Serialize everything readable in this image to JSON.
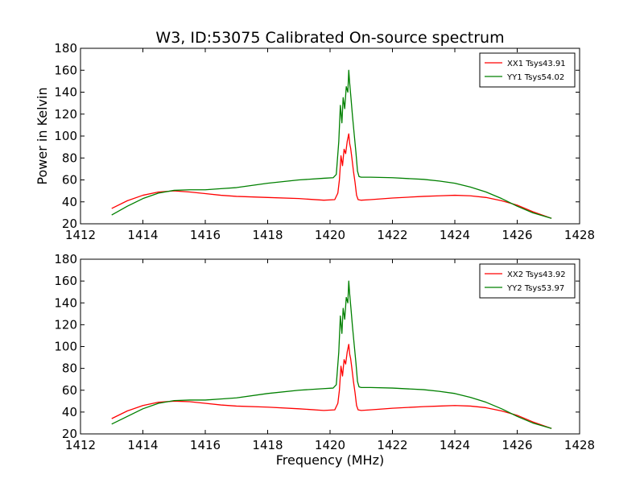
{
  "figure": {
    "title": "W3, ID:53075 Calibrated On-source spectrum",
    "xlabel": "Frequency (MHz)",
    "ylabel": "Power in Kelvin"
  },
  "colors": {
    "series_xx": "#ff0000",
    "series_yy": "#008000",
    "axes": "#000000",
    "background": "#ffffff"
  },
  "chart_data": [
    {
      "type": "line",
      "title": "W3, ID:53075 Calibrated On-source spectrum",
      "xlabel": "",
      "ylabel": "Power in Kelvin",
      "xlim": [
        1412,
        1428
      ],
      "ylim": [
        20,
        180
      ],
      "xticks": [
        1412,
        1414,
        1416,
        1418,
        1420,
        1422,
        1424,
        1426,
        1428
      ],
      "yticks": [
        20,
        40,
        60,
        80,
        100,
        120,
        140,
        160,
        180
      ],
      "legend": "top-right",
      "grid": false,
      "series": [
        {
          "name": "XX1 Tsys43.91",
          "color": "#ff0000",
          "x": [
            1413.0,
            1413.5,
            1414.0,
            1414.5,
            1415.0,
            1415.5,
            1416.0,
            1416.5,
            1417.0,
            1418.0,
            1419.0,
            1419.8,
            1420.15,
            1420.25,
            1420.3,
            1420.35,
            1420.4,
            1420.45,
            1420.5,
            1420.55,
            1420.6,
            1420.63,
            1420.66,
            1420.7,
            1420.75,
            1420.8,
            1420.85,
            1420.9,
            1421.0,
            1421.3,
            1422.0,
            1423.0,
            1423.5,
            1424.0,
            1424.5,
            1425.0,
            1425.5,
            1426.0,
            1426.5,
            1427.1
          ],
          "y": [
            34,
            41,
            46,
            49,
            50,
            49,
            47.5,
            46,
            45,
            44,
            43,
            41.5,
            42,
            48,
            60,
            82,
            73,
            88,
            84,
            95,
            102,
            93,
            89,
            80,
            68,
            58,
            46,
            42,
            41.5,
            42,
            43.5,
            45,
            45.5,
            46,
            45.5,
            44,
            41,
            37,
            31,
            25
          ]
        },
        {
          "name": "YY1 Tsys54.02",
          "color": "#008000",
          "x": [
            1413.0,
            1413.5,
            1414.0,
            1414.5,
            1415.0,
            1415.5,
            1416.0,
            1416.5,
            1417.0,
            1418.0,
            1419.0,
            1419.8,
            1420.1,
            1420.2,
            1420.28,
            1420.33,
            1420.38,
            1420.42,
            1420.47,
            1420.52,
            1420.57,
            1420.6,
            1420.63,
            1420.67,
            1420.72,
            1420.78,
            1420.83,
            1420.88,
            1420.93,
            1421.0,
            1421.3,
            1422.0,
            1423.0,
            1423.5,
            1424.0,
            1424.5,
            1425.0,
            1425.5,
            1426.0,
            1426.5,
            1427.1
          ],
          "y": [
            28,
            36,
            43,
            48,
            50.5,
            51,
            51,
            52,
            53,
            57,
            60,
            61.5,
            62,
            65,
            95,
            128,
            112,
            135,
            125,
            145,
            140,
            160,
            148,
            135,
            118,
            100,
            85,
            68,
            63,
            62.5,
            62.5,
            62,
            60.5,
            59,
            57,
            53.5,
            49,
            43,
            36,
            30,
            25
          ]
        }
      ]
    },
    {
      "type": "line",
      "title": "",
      "xlabel": "Frequency (MHz)",
      "ylabel": "",
      "xlim": [
        1412,
        1428
      ],
      "ylim": [
        20,
        180
      ],
      "xticks": [
        1412,
        1414,
        1416,
        1418,
        1420,
        1422,
        1424,
        1426,
        1428
      ],
      "yticks": [
        20,
        40,
        60,
        80,
        100,
        120,
        140,
        160,
        180
      ],
      "legend": "top-right",
      "grid": false,
      "series": [
        {
          "name": "XX2 Tsys43.92",
          "color": "#ff0000",
          "x": [
            1413.0,
            1413.5,
            1414.0,
            1414.5,
            1415.0,
            1415.5,
            1416.0,
            1416.5,
            1417.0,
            1418.0,
            1419.0,
            1419.8,
            1420.15,
            1420.25,
            1420.3,
            1420.35,
            1420.4,
            1420.45,
            1420.5,
            1420.55,
            1420.6,
            1420.63,
            1420.66,
            1420.7,
            1420.75,
            1420.8,
            1420.85,
            1420.9,
            1421.0,
            1421.3,
            1422.0,
            1423.0,
            1423.5,
            1424.0,
            1424.5,
            1425.0,
            1425.5,
            1426.0,
            1426.5,
            1427.1
          ],
          "y": [
            34,
            41,
            46,
            49,
            50,
            49.5,
            48,
            46.5,
            45.5,
            44.5,
            43,
            41.5,
            42,
            48,
            60,
            82,
            73,
            88,
            84,
            95,
            102,
            93,
            89,
            80,
            68,
            58,
            46,
            42,
            41.5,
            42,
            43.5,
            45,
            45.5,
            46,
            45.5,
            44,
            41,
            37,
            31,
            25
          ]
        },
        {
          "name": "YY2 Tsys53.97",
          "color": "#008000",
          "x": [
            1413.0,
            1413.5,
            1414.0,
            1414.5,
            1415.0,
            1415.5,
            1416.0,
            1416.5,
            1417.0,
            1418.0,
            1419.0,
            1419.8,
            1420.1,
            1420.2,
            1420.28,
            1420.33,
            1420.38,
            1420.42,
            1420.47,
            1420.52,
            1420.57,
            1420.6,
            1420.63,
            1420.67,
            1420.72,
            1420.78,
            1420.83,
            1420.88,
            1420.93,
            1421.0,
            1421.3,
            1422.0,
            1423.0,
            1423.5,
            1424.0,
            1424.5,
            1425.0,
            1425.5,
            1426.0,
            1426.5,
            1427.1
          ],
          "y": [
            29,
            36,
            43,
            48,
            50.5,
            51,
            51,
            52,
            53,
            57,
            60,
            61.5,
            62,
            65,
            95,
            128,
            112,
            135,
            125,
            145,
            140,
            160,
            148,
            135,
            118,
            100,
            85,
            68,
            63,
            62.5,
            62.5,
            62,
            60.5,
            59,
            57,
            53.5,
            49,
            43,
            36,
            30,
            25
          ]
        }
      ]
    }
  ]
}
